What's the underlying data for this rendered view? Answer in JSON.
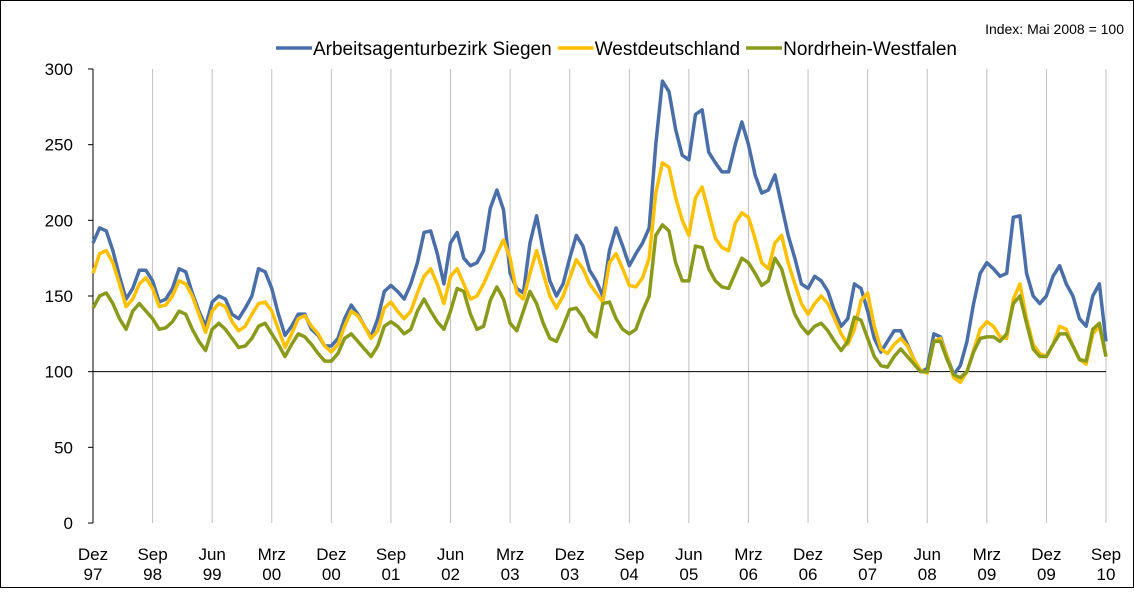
{
  "chart_data": {
    "type": "line",
    "annotation": "Index: Mai 2008 = 100",
    "categories": [
      [
        "Dez",
        "97"
      ],
      null,
      null,
      null,
      null,
      null,
      null,
      null,
      null,
      [
        "Sep",
        "98"
      ],
      null,
      null,
      null,
      null,
      null,
      null,
      null,
      null,
      [
        "Jun",
        "99"
      ],
      null,
      null,
      null,
      null,
      null,
      null,
      null,
      null,
      [
        "Mrz",
        "00"
      ],
      null,
      null,
      null,
      null,
      null,
      null,
      null,
      null,
      [
        "Dez",
        "00"
      ],
      null,
      null,
      null,
      null,
      null,
      null,
      null,
      null,
      [
        "Sep",
        "01"
      ],
      null,
      null,
      null,
      null,
      null,
      null,
      null,
      null,
      [
        "Jun",
        "02"
      ],
      null,
      null,
      null,
      null,
      null,
      null,
      null,
      null,
      [
        "Mrz",
        "03"
      ],
      null,
      null,
      null,
      null,
      null,
      null,
      null,
      null,
      [
        "Dez",
        "03"
      ],
      null,
      null,
      null,
      null,
      null,
      null,
      null,
      null,
      [
        "Sep",
        "04"
      ],
      null,
      null,
      null,
      null,
      null,
      null,
      null,
      null,
      [
        "Jun",
        "05"
      ],
      null,
      null,
      null,
      null,
      null,
      null,
      null,
      null,
      [
        "Mrz",
        "06"
      ],
      null,
      null,
      null,
      null,
      null,
      null,
      null,
      null,
      [
        "Dez",
        "06"
      ],
      null,
      null,
      null,
      null,
      null,
      null,
      null,
      null,
      [
        "Sep",
        "07"
      ],
      null,
      null,
      null,
      null,
      null,
      null,
      null,
      null,
      [
        "Jun",
        "08"
      ],
      null,
      null,
      null,
      null,
      null,
      null,
      null,
      null,
      [
        "Mrz",
        "09"
      ],
      null,
      null,
      null,
      null,
      null,
      null,
      null,
      null,
      [
        "Dez",
        "09"
      ],
      null,
      null,
      null,
      null,
      null,
      null,
      null,
      null,
      [
        "Sep",
        "10"
      ]
    ],
    "series": [
      {
        "name": "Arbeitsagenturbezirk Siegen",
        "color": "#4a6ea8",
        "values": [
          185,
          195,
          193,
          180,
          163,
          148,
          155,
          167,
          167,
          160,
          146,
          148,
          155,
          168,
          166,
          152,
          140,
          130,
          146,
          150,
          148,
          138,
          135,
          142,
          150,
          168,
          166,
          155,
          138,
          124,
          130,
          138,
          138,
          128,
          124,
          117,
          117,
          122,
          135,
          144,
          138,
          130,
          123,
          135,
          153,
          157,
          153,
          148,
          158,
          172,
          192,
          193,
          178,
          158,
          185,
          192,
          175,
          170,
          172,
          180,
          208,
          220,
          207,
          165,
          155,
          152,
          185,
          203,
          180,
          160,
          150,
          158,
          175,
          190,
          183,
          167,
          160,
          150,
          180,
          195,
          183,
          170,
          178,
          185,
          195,
          250,
          292,
          285,
          260,
          243,
          240,
          270,
          273,
          245,
          238,
          232,
          232,
          250,
          265,
          250,
          230,
          218,
          220,
          230,
          210,
          190,
          175,
          158,
          155,
          163,
          160,
          153,
          140,
          130,
          135,
          158,
          155,
          140,
          122,
          113,
          120,
          127,
          127,
          118,
          108,
          100,
          102,
          125,
          123,
          110,
          98,
          104,
          120,
          145,
          165,
          172,
          168,
          163,
          165,
          202,
          203,
          165,
          150,
          145,
          150,
          163,
          170,
          158,
          150,
          135,
          130,
          150,
          158,
          120
        ]
      },
      {
        "name": "Westdeutschland",
        "color": "#ffc000",
        "values": [
          165,
          178,
          180,
          172,
          158,
          143,
          148,
          158,
          162,
          155,
          143,
          144,
          150,
          160,
          158,
          150,
          138,
          126,
          140,
          145,
          143,
          133,
          127,
          130,
          138,
          145,
          146,
          140,
          128,
          116,
          125,
          135,
          137,
          130,
          125,
          117,
          113,
          118,
          130,
          140,
          137,
          130,
          122,
          127,
          142,
          146,
          140,
          135,
          140,
          152,
          163,
          168,
          158,
          145,
          163,
          168,
          158,
          148,
          150,
          158,
          168,
          178,
          187,
          175,
          152,
          148,
          165,
          180,
          165,
          150,
          142,
          150,
          162,
          174,
          168,
          158,
          152,
          146,
          172,
          178,
          168,
          157,
          156,
          162,
          175,
          218,
          238,
          235,
          215,
          200,
          190,
          215,
          222,
          205,
          188,
          182,
          180,
          198,
          205,
          202,
          188,
          172,
          168,
          185,
          190,
          172,
          158,
          145,
          138,
          145,
          150,
          145,
          135,
          125,
          118,
          128,
          147,
          152,
          130,
          115,
          112,
          118,
          122,
          117,
          108,
          101,
          99,
          120,
          122,
          110,
          96,
          93,
          100,
          114,
          128,
          133,
          130,
          123,
          122,
          148,
          158,
          135,
          118,
          112,
          110,
          118,
          130,
          128,
          117,
          108,
          105,
          125,
          130,
          110
        ]
      },
      {
        "name": "Nordrhein-Westfalen",
        "color": "#8a9a1b",
        "values": [
          142,
          150,
          152,
          145,
          135,
          128,
          140,
          145,
          140,
          135,
          128,
          129,
          133,
          140,
          138,
          128,
          120,
          114,
          128,
          132,
          128,
          122,
          116,
          117,
          122,
          130,
          132,
          125,
          118,
          110,
          118,
          125,
          123,
          118,
          112,
          107,
          107,
          112,
          122,
          125,
          120,
          115,
          110,
          117,
          130,
          133,
          130,
          125,
          128,
          140,
          148,
          140,
          133,
          128,
          140,
          155,
          153,
          138,
          128,
          130,
          147,
          156,
          148,
          132,
          127,
          140,
          153,
          145,
          132,
          122,
          120,
          130,
          141,
          142,
          136,
          127,
          123,
          145,
          146,
          135,
          128,
          125,
          128,
          140,
          150,
          190,
          197,
          193,
          172,
          160,
          160,
          183,
          182,
          168,
          160,
          156,
          155,
          165,
          175,
          172,
          165,
          157,
          160,
          175,
          168,
          152,
          138,
          130,
          125,
          130,
          132,
          127,
          120,
          114,
          120,
          136,
          134,
          122,
          110,
          104,
          103,
          110,
          115,
          110,
          105,
          100,
          100,
          120,
          120,
          108,
          98,
          96,
          100,
          113,
          122,
          123,
          123,
          120,
          125,
          145,
          150,
          132,
          115,
          110,
          110,
          118,
          125,
          125,
          117,
          108,
          107,
          128,
          132,
          110
        ]
      }
    ],
    "ylim": [
      0,
      300
    ],
    "yticks": [
      0,
      50,
      100,
      150,
      200,
      250,
      300
    ],
    "x_axis_crosses": 100,
    "grid": "vertical",
    "legend": "top"
  }
}
